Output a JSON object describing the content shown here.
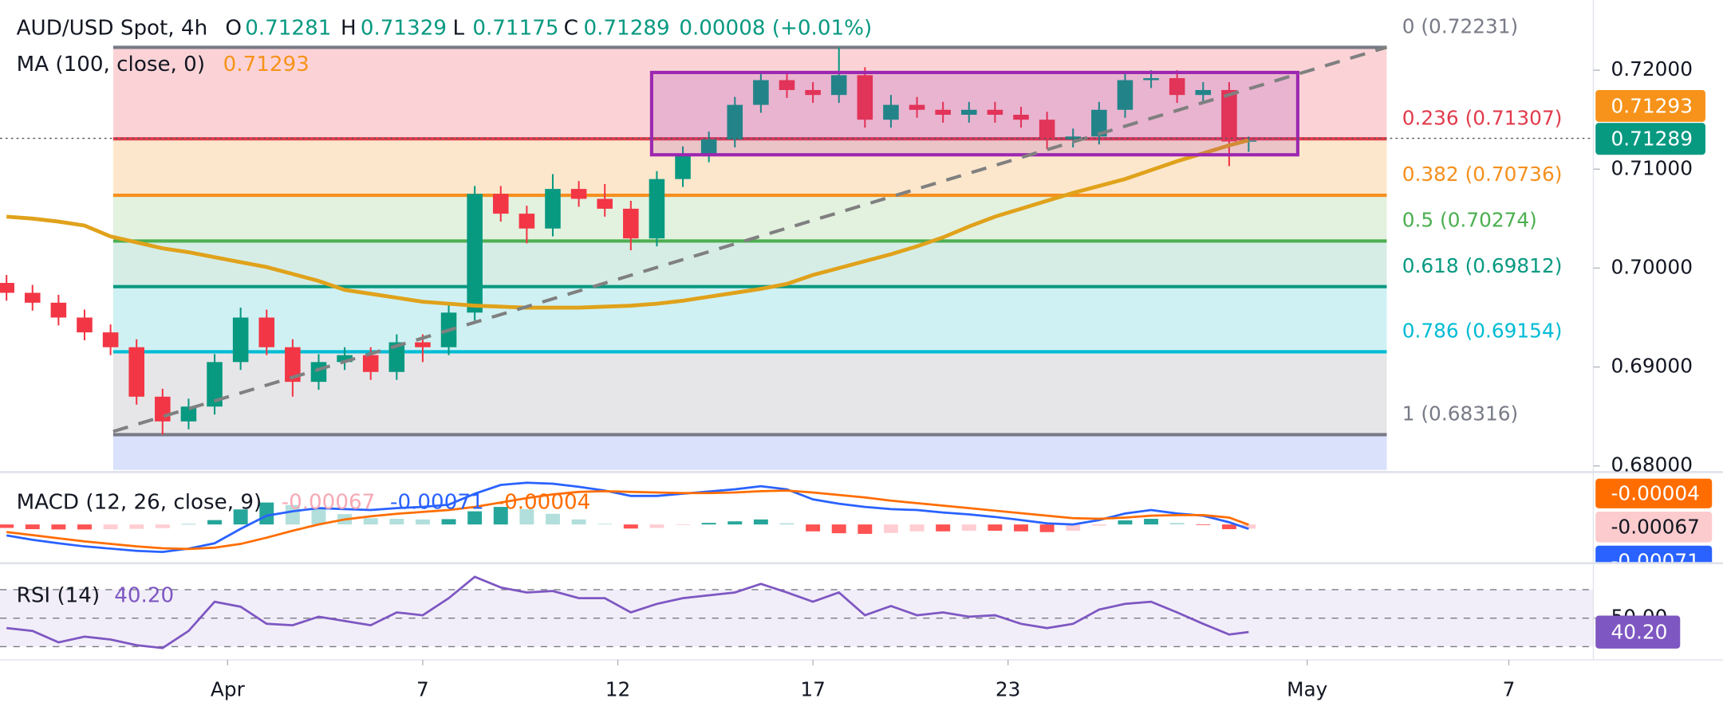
{
  "chart_data": [
    {
      "type": "candlestick",
      "title": "AUD/USD Spot, 4h",
      "ohlc_labels": [
        "O",
        "H",
        "L",
        "C"
      ],
      "change": "0.00008 (+0.01%)",
      "x": [
        -34,
        -30,
        -26,
        -22,
        -18,
        -14,
        -10,
        -6,
        -2,
        2,
        6,
        10,
        14,
        18,
        22,
        26,
        30,
        34,
        38,
        42,
        46,
        50,
        54,
        58,
        62,
        66,
        70,
        74,
        78,
        82,
        86,
        90,
        94,
        98,
        102,
        106,
        110,
        114,
        118,
        122,
        126,
        130,
        134,
        138,
        142,
        146,
        150,
        154,
        157
      ],
      "open": [
        0.6985,
        0.6975,
        0.6965,
        0.695,
        0.6935,
        0.692,
        0.687,
        0.6845,
        0.686,
        0.6905,
        0.695,
        0.692,
        0.6885,
        0.6905,
        0.6912,
        0.6895,
        0.6925,
        0.692,
        0.6955,
        0.7075,
        0.7055,
        0.704,
        0.708,
        0.707,
        0.706,
        0.703,
        0.709,
        0.7115,
        0.713,
        0.7165,
        0.719,
        0.718,
        0.7175,
        0.7195,
        0.715,
        0.7165,
        0.716,
        0.7155,
        0.716,
        0.7155,
        0.715,
        0.713,
        0.7133,
        0.716,
        0.719,
        0.7192,
        0.7175,
        0.718,
        0.71281
      ],
      "high": [
        0.6993,
        0.6983,
        0.6973,
        0.6958,
        0.6943,
        0.6928,
        0.6878,
        0.6868,
        0.6913,
        0.696,
        0.6958,
        0.6928,
        0.6913,
        0.692,
        0.692,
        0.6933,
        0.6933,
        0.6963,
        0.7083,
        0.7083,
        0.7063,
        0.7095,
        0.7088,
        0.7085,
        0.7068,
        0.7098,
        0.7123,
        0.7138,
        0.7173,
        0.7198,
        0.7198,
        0.7188,
        0.72231,
        0.7203,
        0.7175,
        0.7173,
        0.7168,
        0.7168,
        0.7168,
        0.7163,
        0.7158,
        0.7141,
        0.7168,
        0.7198,
        0.72,
        0.72,
        0.7188,
        0.7188,
        0.71329
      ],
      "low": [
        0.6967,
        0.6957,
        0.6942,
        0.6927,
        0.6912,
        0.6862,
        0.68316,
        0.6837,
        0.6852,
        0.6897,
        0.6912,
        0.687,
        0.6877,
        0.6897,
        0.6887,
        0.6887,
        0.6905,
        0.6912,
        0.6947,
        0.7047,
        0.7025,
        0.7032,
        0.7062,
        0.7052,
        0.7018,
        0.7022,
        0.7082,
        0.7107,
        0.7122,
        0.7157,
        0.7172,
        0.7167,
        0.7167,
        0.7142,
        0.7142,
        0.7152,
        0.7147,
        0.7147,
        0.7147,
        0.7142,
        0.712,
        0.7122,
        0.7125,
        0.7152,
        0.7182,
        0.7167,
        0.7167,
        0.7103,
        0.71175
      ],
      "close": [
        0.6975,
        0.6965,
        0.695,
        0.6935,
        0.692,
        0.687,
        0.6845,
        0.686,
        0.6905,
        0.695,
        0.692,
        0.6885,
        0.6905,
        0.6912,
        0.6895,
        0.6925,
        0.692,
        0.6955,
        0.7075,
        0.7055,
        0.704,
        0.708,
        0.707,
        0.706,
        0.703,
        0.709,
        0.7115,
        0.713,
        0.7165,
        0.719,
        0.718,
        0.7175,
        0.7195,
        0.715,
        0.7165,
        0.716,
        0.7155,
        0.716,
        0.7155,
        0.715,
        0.713,
        0.7133,
        0.716,
        0.719,
        0.7192,
        0.7175,
        0.718,
        0.7128,
        0.71289
      ],
      "up_color": "#089981",
      "down_color": "#f23645",
      "ma": {
        "name": "MA (100, close, 0)",
        "color": "#e0a21b",
        "value_color": "#f7931a",
        "values": [
          0.7052,
          0.705,
          0.7047,
          0.7043,
          0.7032,
          0.7026,
          0.702,
          0.7016,
          0.7011,
          0.7006,
          0.7001,
          0.6994,
          0.6987,
          0.6978,
          0.6974,
          0.697,
          0.6966,
          0.6964,
          0.6962,
          0.6961,
          0.696,
          0.696,
          0.696,
          0.6961,
          0.6962,
          0.6964,
          0.6967,
          0.6971,
          0.6975,
          0.6979,
          0.6984,
          0.6993,
          0.7,
          0.7007,
          0.7014,
          0.7022,
          0.7031,
          0.7042,
          0.7052,
          0.706,
          0.7068,
          0.7076,
          0.7083,
          0.709,
          0.7099,
          0.7108,
          0.7116,
          0.7124,
          0.71293
        ]
      },
      "fib_levels": [
        {
          "label": "0 (0.72231)",
          "value": 0.72231,
          "color": "#787b86",
          "band": "#fbd3d7"
        },
        {
          "label": "0.236 (0.71307)",
          "value": 0.71307,
          "color": "#e13b4c",
          "band": "#fde7cc"
        },
        {
          "label": "0.382 (0.70736)",
          "value": 0.70736,
          "color": "#f5901e",
          "band": "#e3f1df"
        },
        {
          "label": "0.5 (0.70274)",
          "value": 0.70274,
          "color": "#4caf50",
          "band": "#d6ede6"
        },
        {
          "label": "0.618 (0.69812)",
          "value": 0.69812,
          "color": "#089981",
          "band": "#cff1f3"
        },
        {
          "label": "0.786 (0.69154)",
          "value": 0.69154,
          "color": "#00bcd4",
          "band": "#e6e6e8"
        },
        {
          "label": "1 (0.68316)",
          "value": 0.68316,
          "color": "#787b86",
          "band": "#d9e1fb"
        }
      ],
      "xlim": [
        -35,
        210
      ],
      "xticks": [
        {
          "value": 0,
          "label": "Apr"
        },
        {
          "value": 30,
          "label": "7"
        },
        {
          "value": 60,
          "label": "12"
        },
        {
          "value": 90,
          "label": "17"
        },
        {
          "value": 120,
          "label": "23"
        },
        {
          "value": 166,
          "label": "May"
        },
        {
          "value": 197,
          "label": "7"
        }
      ],
      "ylim": [
        0.6796,
        0.7271
      ],
      "yticks": [
        {
          "value": 0.72,
          "label": "0.72000"
        },
        {
          "value": 0.71,
          "label": "0.71000"
        },
        {
          "value": 0.7,
          "label": "0.70000"
        },
        {
          "value": 0.69,
          "label": "0.69000"
        },
        {
          "value": 0.68,
          "label": "0.68000"
        }
      ]
    },
    {
      "type": "macd",
      "title": "MACD (12, 26, close, 9)",
      "ylim": [
        -0.006,
        0.008
      ],
      "histogram": {
        "colors": [
          "#26a69a",
          "#b2dfdb",
          "#ff5252",
          "#ffcdd2"
        ],
        "label_color": "#f7a9b5",
        "badge_color": "#fccbcd",
        "values": [
          -0.00055,
          -0.00075,
          -0.0008,
          -0.0008,
          -0.00075,
          -0.0007,
          -0.00058,
          5e-05,
          0.0007,
          0.0024,
          0.0035,
          0.0031,
          0.0026,
          0.00165,
          0.001,
          0.0009,
          0.0008,
          0.00085,
          0.0021,
          0.0028,
          0.00245,
          0.0017,
          0.0008,
          0.0001,
          -0.00065,
          -0.00055,
          -0.0001,
          0.00025,
          0.0005,
          0.0008,
          0.0002,
          -0.0011,
          -0.0014,
          -0.0015,
          -0.00135,
          -0.0011,
          -0.0011,
          -0.001,
          -0.001,
          -0.0011,
          -0.00122,
          -0.001,
          -0.0002,
          0.00065,
          0.0009,
          0.00025,
          -0.0001,
          -0.00075,
          -0.00067
        ]
      },
      "macd": {
        "color": "#2962ff",
        "values": [
          -0.00175,
          -0.00245,
          -0.003,
          -0.0035,
          -0.00385,
          -0.0042,
          -0.00438,
          -0.00385,
          -0.003,
          -0.0007,
          0.0014,
          0.0021,
          0.0026,
          0.00245,
          0.0023,
          0.0026,
          0.0028,
          0.00315,
          0.0049,
          0.0063,
          0.00665,
          0.0065,
          0.006,
          0.0054,
          0.00455,
          0.00455,
          0.0049,
          0.00525,
          0.0056,
          0.0061,
          0.0056,
          0.004,
          0.0033,
          0.0028,
          0.00245,
          0.0023,
          0.0019,
          0.0016,
          0.0012,
          0.0007,
          0.00018,
          0,
          0.0007,
          0.00175,
          0.0023,
          0.00175,
          0.0014,
          0.00035,
          -0.00071
        ]
      },
      "signal": {
        "color": "#ff6d00",
        "values": [
          -0.0012,
          -0.0017,
          -0.0022,
          -0.0027,
          -0.0031,
          -0.0035,
          -0.0038,
          -0.0039,
          -0.0037,
          -0.0031,
          -0.0021,
          -0.001,
          0,
          0.0008,
          0.0013,
          0.0017,
          0.002,
          0.0023,
          0.0028,
          0.0035,
          0.0042,
          0.0048,
          0.0052,
          0.0053,
          0.0052,
          0.0051,
          0.005,
          0.005,
          0.0051,
          0.0053,
          0.0054,
          0.0051,
          0.0047,
          0.0043,
          0.0038,
          0.0034,
          0.003,
          0.0026,
          0.0022,
          0.0018,
          0.0014,
          0.001,
          0.0009,
          0.0011,
          0.0014,
          0.0015,
          0.0015,
          0.0011,
          -4e-05
        ]
      }
    },
    {
      "type": "rsi",
      "title": "RSI (14)",
      "color": "#7e57c2",
      "values": [
        43,
        41,
        33,
        37,
        35,
        31,
        29,
        41,
        61.5,
        58,
        46,
        45,
        51,
        48,
        45,
        54,
        52,
        64,
        79,
        71.5,
        68,
        69,
        64,
        64,
        54,
        60,
        64,
        66,
        68,
        74,
        68,
        61.5,
        68,
        52,
        58.5,
        52,
        54,
        51,
        52,
        46,
        43,
        46,
        56,
        60,
        61.5,
        54,
        46,
        38.5,
        40.2
      ],
      "value_label": "40.20",
      "ylim": [
        21.5,
        87
      ],
      "levels": [
        70,
        50,
        30
      ],
      "yticks": [
        {
          "value": 50,
          "label": "50.00"
        }
      ]
    }
  ]
}
